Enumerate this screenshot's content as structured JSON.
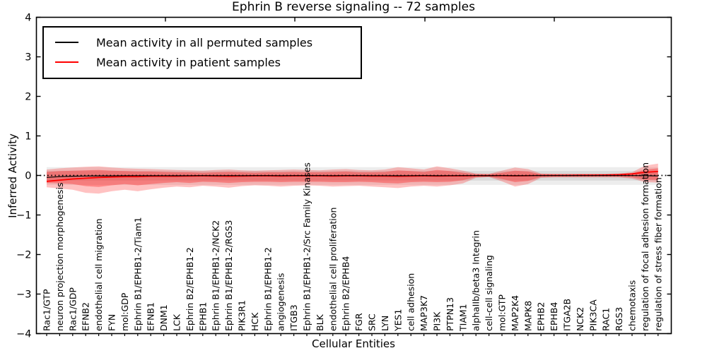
{
  "chart_data": {
    "type": "line",
    "title": "Ephrin B reverse signaling -- 72 samples",
    "xlabel": "Cellular Entities",
    "ylabel": "Inferred Activity",
    "ylim": [
      -4,
      4
    ],
    "yticks": [
      4,
      3,
      2,
      1,
      0,
      -1,
      -2,
      -3,
      -4
    ],
    "grid": false,
    "legend_position": "upper-left",
    "categories": [
      "Rac1/GTP",
      "neuron projection morphogenesis",
      "Rac1/GDP",
      "EFNB2",
      "endothelial cell migration",
      "FYN",
      "mol:GDP",
      "Ephrin B1/EPHB1-2/Tiam1",
      "EFNB1",
      "DNM1",
      "LCK",
      "Ephrin B2/EPHB1-2",
      "EPHB1",
      "Ephrin B1/EPHB1-2/NCK2",
      "Ephrin B1/EPHB1-2/RGS3",
      "PIK3R1",
      "HCK",
      "Ephrin B1/EPHB1-2",
      "angiogenesis",
      "ITGB3",
      "Ephrin B1/EPHB1-2/Src Family Kinases",
      "BLK",
      "endothelial cell proliferation",
      "Ephrin B2/EPHB4",
      "FGR",
      "SRC",
      "LYN",
      "YES1",
      "cell adhesion",
      "MAP3K7",
      "PI3K",
      "PTPN13",
      "TIAM1",
      "alphaIIb/beta3 Integrin",
      "cell-cell signaling",
      "mol:GTP",
      "MAP2K4",
      "MAPK8",
      "EPHB2",
      "EPHB4",
      "ITGA2B",
      "NCK2",
      "PIK3CA",
      "RAC1",
      "RGS3",
      "chemotaxis",
      "regulation of focal adhesion formation",
      "regulation of stress fiber formation"
    ],
    "series": [
      {
        "name": "Mean activity in all permuted samples",
        "color": "#000000",
        "style": "solid",
        "values": [
          -0.05,
          -0.03,
          -0.02,
          -0.015,
          -0.01,
          -0.01,
          -0.008,
          -0.006,
          -0.008,
          -0.005,
          -0.008,
          -0.005,
          -0.004,
          -0.006,
          -0.004,
          -0.005,
          -0.004,
          -0.004,
          -0.006,
          -0.004,
          -0.004,
          -0.004,
          -0.006,
          -0.004,
          -0.004,
          -0.006,
          -0.005,
          -0.008,
          -0.005,
          -0.004,
          -0.008,
          -0.005,
          -0.004,
          -0.004,
          -0.008,
          -0.004,
          -0.008,
          -0.005,
          -0.004,
          -0.004,
          -0.004,
          -0.004,
          -0.004,
          -0.004,
          -0.004,
          -0.004,
          -0.008,
          -0.01
        ]
      },
      {
        "name": "Mean activity in patient samples",
        "color": "#ff0000",
        "style": "solid",
        "values": [
          -0.15,
          -0.12,
          -0.09,
          -0.07,
          -0.05,
          -0.04,
          -0.03,
          -0.03,
          -0.02,
          -0.02,
          -0.02,
          -0.015,
          -0.01,
          -0.015,
          -0.02,
          -0.015,
          -0.01,
          -0.01,
          -0.015,
          -0.01,
          -0.01,
          -0.01,
          -0.015,
          -0.01,
          -0.01,
          -0.015,
          -0.015,
          -0.02,
          -0.015,
          -0.01,
          -0.015,
          -0.01,
          -0.01,
          -0.005,
          -0.005,
          -0.005,
          -0.01,
          -0.005,
          0,
          0,
          0,
          0.005,
          0.005,
          0.01,
          0.02,
          0.04,
          0.08,
          0.1
        ]
      }
    ],
    "zero_reference_line": {
      "value": 0,
      "style": "dotted",
      "color": "#000000"
    },
    "patient_band_outer": {
      "color": "#ff0000",
      "opacity": 0.24,
      "hi": [
        0.15,
        0.18,
        0.2,
        0.22,
        0.23,
        0.2,
        0.18,
        0.17,
        0.16,
        0.15,
        0.14,
        0.13,
        0.12,
        0.14,
        0.15,
        0.13,
        0.12,
        0.13,
        0.14,
        0.15,
        0.14,
        0.13,
        0.15,
        0.16,
        0.14,
        0.13,
        0.15,
        0.21,
        0.18,
        0.15,
        0.23,
        0.18,
        0.12,
        0.05,
        0.04,
        0.12,
        0.2,
        0.16,
        0.05,
        0.04,
        0.04,
        0.04,
        0.04,
        0.04,
        0.05,
        0.08,
        0.25,
        0.3
      ],
      "lo": [
        -0.3,
        -0.33,
        -0.36,
        -0.44,
        -0.46,
        -0.4,
        -0.36,
        -0.4,
        -0.35,
        -0.31,
        -0.28,
        -0.3,
        -0.26,
        -0.28,
        -0.31,
        -0.27,
        -0.25,
        -0.26,
        -0.28,
        -0.26,
        -0.25,
        -0.26,
        -0.28,
        -0.27,
        -0.26,
        -0.28,
        -0.3,
        -0.32,
        -0.28,
        -0.26,
        -0.28,
        -0.25,
        -0.2,
        -0.06,
        -0.04,
        -0.15,
        -0.28,
        -0.22,
        -0.06,
        -0.05,
        -0.05,
        -0.05,
        -0.05,
        -0.05,
        -0.05,
        -0.08,
        -0.17,
        -0.18
      ]
    },
    "patient_band_inner": {
      "color": "#ff0000",
      "opacity": 0.3,
      "hi": [
        0.09,
        0.11,
        0.12,
        0.13,
        0.14,
        0.12,
        0.11,
        0.1,
        0.1,
        0.09,
        0.08,
        0.08,
        0.07,
        0.08,
        0.09,
        0.08,
        0.07,
        0.08,
        0.08,
        0.09,
        0.08,
        0.08,
        0.09,
        0.1,
        0.08,
        0.08,
        0.09,
        0.13,
        0.11,
        0.09,
        0.14,
        0.11,
        0.07,
        0.03,
        0.03,
        0.07,
        0.12,
        0.1,
        0.03,
        0.03,
        0.03,
        0.03,
        0.03,
        0.03,
        0.03,
        0.05,
        0.15,
        0.18
      ],
      "lo": [
        -0.19,
        -0.2,
        -0.22,
        -0.27,
        -0.29,
        -0.25,
        -0.22,
        -0.25,
        -0.22,
        -0.19,
        -0.17,
        -0.19,
        -0.16,
        -0.17,
        -0.19,
        -0.17,
        -0.16,
        -0.16,
        -0.17,
        -0.16,
        -0.16,
        -0.16,
        -0.17,
        -0.17,
        -0.16,
        -0.17,
        -0.19,
        -0.2,
        -0.17,
        -0.16,
        -0.17,
        -0.16,
        -0.12,
        -0.04,
        -0.03,
        -0.09,
        -0.17,
        -0.14,
        -0.04,
        -0.03,
        -0.03,
        -0.03,
        -0.03,
        -0.03,
        -0.03,
        -0.05,
        -0.11,
        -0.11
      ]
    },
    "permuted_band_outer": {
      "color": "#000000",
      "opacity": 0.07,
      "hi": 0.21,
      "lo": -0.24
    },
    "permuted_band_inner": {
      "color": "#000000",
      "opacity": 0.08,
      "hi": 0.11,
      "lo": -0.13
    }
  },
  "legend": {
    "entries": [
      {
        "label": "Mean activity in all permuted samples",
        "color": "#000000"
      },
      {
        "label": "Mean activity in patient samples",
        "color": "#ff0000"
      }
    ]
  },
  "axes": {
    "title": "Ephrin B reverse signaling -- 72 samples",
    "xlabel": "Cellular Entities",
    "ylabel": "Inferred Activity"
  }
}
